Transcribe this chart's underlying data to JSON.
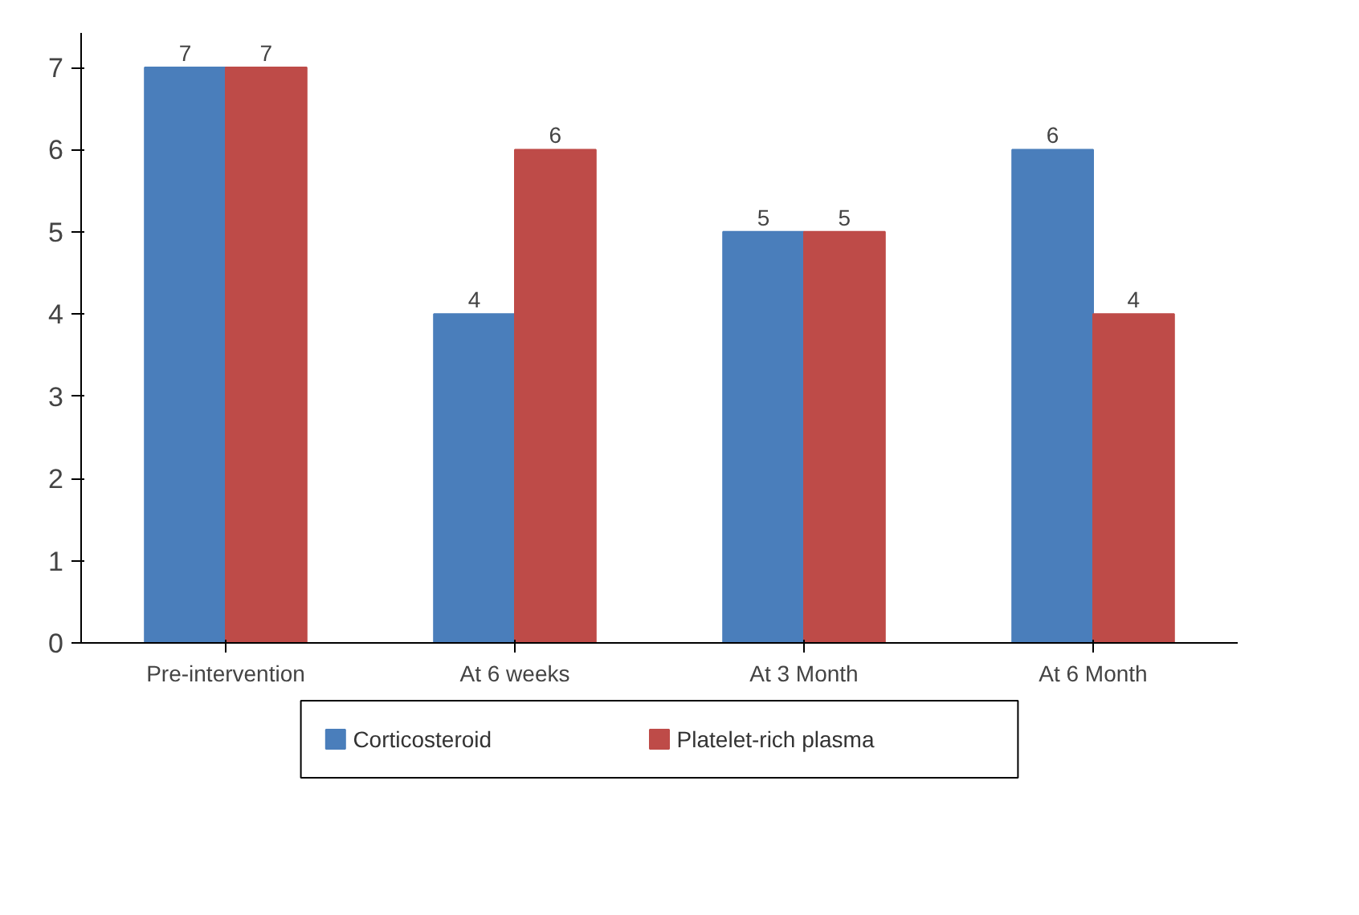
{
  "chart_data": {
    "type": "bar",
    "categories": [
      "Pre-intervention",
      "At 6 weeks",
      "At 3 Month",
      "At 6 Month"
    ],
    "series": [
      {
        "name": "Corticosteroid",
        "color": "#4a7ebb",
        "values": [
          7,
          4,
          5,
          6
        ]
      },
      {
        "name": "Platelet-rich plasma",
        "color": "#be4b48",
        "values": [
          7,
          6,
          5,
          4
        ]
      }
    ],
    "ylim": [
      0,
      7
    ],
    "yticks": [
      0,
      1,
      2,
      3,
      4,
      5,
      6,
      7
    ],
    "grid": false,
    "legend": "bottom",
    "data_labels": true
  }
}
